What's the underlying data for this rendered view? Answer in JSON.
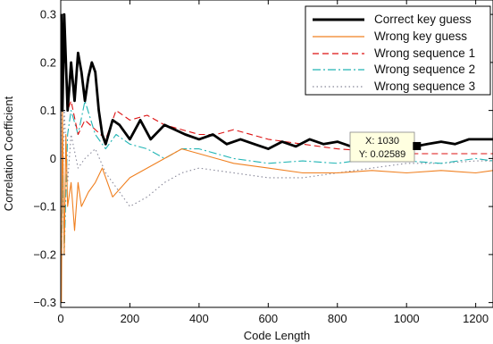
{
  "chart_data": {
    "type": "line",
    "xlabel": "Code Length",
    "ylabel": "Correlation Coefficient",
    "xlim": [
      0,
      1250
    ],
    "ylim": [
      -0.31,
      0.33
    ],
    "x_ticks": [
      0,
      200,
      400,
      600,
      800,
      1000,
      1200
    ],
    "x_tick_labels": [
      "0",
      "200",
      "400",
      "600",
      "800",
      "1000",
      "1200"
    ],
    "y_ticks": [
      -0.3,
      -0.2,
      -0.1,
      0,
      0.1,
      0.2,
      0.3
    ],
    "y_tick_labels": [
      "−0.3",
      "−0.2",
      "−0.1",
      "0",
      "0.1",
      "0.2",
      "0.3"
    ],
    "grid": false,
    "legend_position": "top-right",
    "series": [
      {
        "name": "Correct key guess",
        "color": "#000000",
        "style": "solid-thick",
        "x": [
          2,
          5,
          10,
          15,
          20,
          25,
          30,
          40,
          50,
          60,
          70,
          80,
          90,
          100,
          110,
          120,
          130,
          150,
          170,
          200,
          230,
          260,
          300,
          330,
          360,
          400,
          440,
          480,
          520,
          560,
          600,
          640,
          680,
          720,
          760,
          800,
          840,
          880,
          920,
          960,
          1000,
          1030,
          1060,
          1100,
          1140,
          1180,
          1220,
          1250
        ],
        "values": [
          0.3,
          0.1,
          0.3,
          0.2,
          0.1,
          0.15,
          0.2,
          0.12,
          0.22,
          0.18,
          0.12,
          0.17,
          0.2,
          0.18,
          0.1,
          0.05,
          0.03,
          0.08,
          0.07,
          0.04,
          0.08,
          0.04,
          0.07,
          0.06,
          0.05,
          0.04,
          0.05,
          0.03,
          0.04,
          0.03,
          0.02,
          0.035,
          0.025,
          0.04,
          0.03,
          0.035,
          0.025,
          0.03,
          0.025,
          0.03,
          0.028,
          0.02589,
          0.03,
          0.035,
          0.03,
          0.04,
          0.04,
          0.04
        ]
      },
      {
        "name": "Wrong key guess",
        "color": "#f08020",
        "style": "solid",
        "x": [
          2,
          5,
          10,
          15,
          20,
          30,
          40,
          50,
          60,
          80,
          100,
          120,
          150,
          200,
          250,
          300,
          350,
          400,
          450,
          500,
          600,
          700,
          800,
          900,
          1000,
          1100,
          1200,
          1250
        ],
        "values": [
          -0.3,
          0.1,
          -0.2,
          0.05,
          -0.1,
          -0.05,
          -0.15,
          -0.05,
          -0.1,
          -0.07,
          -0.05,
          -0.02,
          -0.08,
          -0.04,
          -0.02,
          0.0,
          0.02,
          0.01,
          0.0,
          -0.01,
          -0.02,
          -0.03,
          -0.03,
          -0.025,
          -0.03,
          -0.025,
          -0.03,
          -0.025
        ]
      },
      {
        "name": "Wrong sequence 1",
        "color": "#dd1111",
        "style": "dashed",
        "x": [
          2,
          5,
          10,
          20,
          30,
          50,
          70,
          100,
          130,
          160,
          200,
          250,
          300,
          350,
          400,
          450,
          500,
          600,
          700,
          800,
          900,
          1000,
          1100,
          1200,
          1250
        ],
        "values": [
          0.3,
          0.2,
          0.25,
          0.1,
          0.12,
          0.05,
          0.08,
          0.06,
          0.04,
          0.1,
          0.08,
          0.09,
          0.07,
          0.06,
          0.05,
          0.05,
          0.06,
          0.04,
          0.03,
          0.02,
          0.015,
          0.01,
          0.01,
          0.01,
          0.01
        ]
      },
      {
        "name": "Wrong sequence 2",
        "color": "#22b5b5",
        "style": "dash-dot",
        "x": [
          2,
          5,
          10,
          20,
          30,
          50,
          70,
          100,
          130,
          160,
          200,
          250,
          300,
          350,
          400,
          500,
          600,
          700,
          800,
          900,
          1000,
          1100,
          1200,
          1250
        ],
        "values": [
          -0.25,
          0.0,
          -0.2,
          0.05,
          0.1,
          0.05,
          0.12,
          0.05,
          0.02,
          0.05,
          0.03,
          0.02,
          0.0,
          0.02,
          0.02,
          0.0,
          -0.01,
          -0.005,
          -0.01,
          0.0,
          -0.005,
          -0.01,
          0.0,
          -0.005
        ]
      },
      {
        "name": "Wrong sequence 3",
        "color": "#888899",
        "style": "dotted",
        "x": [
          2,
          5,
          10,
          20,
          30,
          50,
          70,
          100,
          130,
          160,
          200,
          250,
          300,
          350,
          400,
          500,
          600,
          700,
          800,
          900,
          1000,
          1100,
          1200,
          1250
        ],
        "values": [
          0.2,
          -0.1,
          0.1,
          -0.05,
          0.05,
          -0.02,
          0.0,
          0.02,
          -0.03,
          -0.06,
          -0.1,
          -0.08,
          -0.05,
          -0.03,
          -0.02,
          -0.03,
          -0.04,
          -0.04,
          -0.03,
          -0.02,
          -0.01,
          -0.01,
          -0.005,
          -0.005
        ]
      }
    ],
    "datatip": {
      "x": 1030,
      "y": 0.02589,
      "x_label": "X: 1030",
      "y_label": "Y: 0.02589"
    }
  }
}
